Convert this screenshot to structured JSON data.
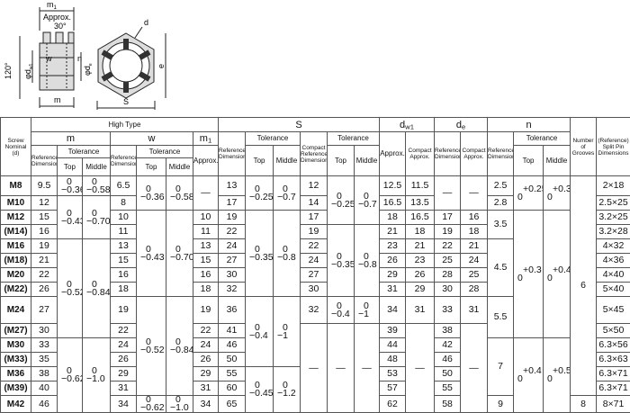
{
  "diagram": {
    "labels": {
      "m1": {
        "main": "m",
        "sub": "1"
      },
      "approx": "Approx.",
      "angle30": "30°",
      "d": "d",
      "angle120": "120°",
      "dw1": {
        "main": "φd",
        "sub": "w1"
      },
      "w": "w",
      "n": "n",
      "de": {
        "main": "φd",
        "sub": "e"
      },
      "e": "e",
      "m": "m",
      "s": "S"
    }
  },
  "table": {
    "header": {
      "nominal": "Screw Nominal (d)",
      "high_type": "High Type",
      "m": {
        "label": "m",
        "ref": "Reference Dimensions",
        "tolerance": "Tolerance",
        "top": "Top",
        "middle": "Middle"
      },
      "w": {
        "label": "w",
        "ref": "Reference Dimensions",
        "tolerance": "Tolerance",
        "top": "Top",
        "middle": "Middle"
      },
      "m1": {
        "label": {
          "main": "m",
          "sub": "1"
        },
        "approx": "Approx."
      },
      "s": {
        "label": "S",
        "ref": "Reference Dimensions",
        "tolerance": "Tolerance",
        "top": "Top",
        "middle": "Middle",
        "compact_ref": "Compact Reference Dimensions",
        "compact_tolerance": "Tolerance",
        "compact_top": "Top",
        "compact_middle": "Middle"
      },
      "dw1": {
        "label": {
          "main": "d",
          "sub": "w1"
        },
        "approx": "Approx.",
        "compact": "Compact Approx."
      },
      "de": {
        "label": {
          "main": "d",
          "sub": "e"
        },
        "ref": "Reference Dimensions",
        "compact": "Compact Approx."
      },
      "n": {
        "label": "n",
        "ref": "Reference Dimensions",
        "tolerance": "Tolerance",
        "top": "Top",
        "middle": "Middle"
      },
      "grooves": "Number of Grooves",
      "split_pin": "(Reference) Split Pin Dimensions"
    },
    "body": {
      "nominal": [
        "M8",
        "M10",
        "M12",
        "(M14)",
        "M16",
        "(M18)",
        "M20",
        "(M22)",
        "M24",
        "(M27)",
        "M30",
        "(M33)",
        "M36",
        "(M39)",
        "M42"
      ],
      "m_ref": [
        9.5,
        12,
        15,
        16,
        19,
        21,
        22,
        26,
        27,
        30,
        33,
        35,
        38,
        40,
        46
      ],
      "m_top": [
        [
          "0",
          "−0.36"
        ],
        [
          "0",
          "−0.43"
        ],
        [
          "0",
          "−0.52"
        ],
        [
          "0",
          "−0.62"
        ]
      ],
      "m_middle": [
        [
          "0",
          "−0.58"
        ],
        [
          "0",
          "−0.70"
        ],
        [
          "0",
          "−0.84"
        ],
        [
          "0",
          "−1.0"
        ]
      ],
      "w_ref": [
        6.5,
        8,
        10,
        11,
        13,
        15,
        16,
        18,
        19,
        22,
        24,
        26,
        29,
        31,
        34
      ],
      "w_top": [
        [
          "0",
          "−0.36"
        ],
        [
          "0",
          "−0.43"
        ],
        [
          "0",
          "−0.52"
        ],
        [
          "0",
          "−0.62"
        ]
      ],
      "w_middle": [
        [
          "0",
          "−0.58"
        ],
        [
          "0",
          "−0.70"
        ],
        [
          "0",
          "−0.84"
        ],
        [
          "0",
          "−1.0"
        ]
      ],
      "m1_approx": [
        "—",
        10,
        11,
        13,
        15,
        16,
        18,
        19,
        22,
        24,
        26,
        29,
        31,
        34
      ],
      "s_ref": [
        13,
        17,
        19,
        22,
        24,
        27,
        30,
        32,
        36,
        41,
        46,
        50,
        55,
        60,
        65
      ],
      "s_top": [
        [
          "0",
          "−0.25"
        ],
        [
          "0",
          "−0.35"
        ],
        [
          "0",
          "−0.4"
        ],
        [
          "0",
          "−0.45"
        ]
      ],
      "s_middle": [
        [
          "0",
          "−0.7"
        ],
        [
          "0",
          "−0.8"
        ],
        [
          "0",
          "−1"
        ],
        [
          "0",
          "−1.2"
        ]
      ],
      "s_compact_ref": [
        12,
        14,
        17,
        19,
        22,
        24,
        27,
        30,
        32,
        "—"
      ],
      "s_compact_top": [
        [
          "0",
          "−0.25"
        ],
        [
          "0",
          "−0.35"
        ],
        [
          "0",
          "−0.4"
        ],
        [
          "—"
        ]
      ],
      "s_compact_middle": [
        [
          "0",
          "−0.7"
        ],
        [
          "0",
          "−0.8"
        ],
        [
          "0",
          "−1"
        ],
        [
          "—"
        ]
      ],
      "dw1_approx": [
        12.5,
        16.5,
        18,
        21,
        23,
        26,
        29,
        31,
        34,
        39,
        44,
        48,
        53,
        57,
        62
      ],
      "dw1_compact": [
        11.5,
        13.5,
        16.5,
        18,
        21,
        23,
        26,
        29,
        31,
        "—"
      ],
      "de_ref": [
        "—",
        17,
        19,
        22,
        25,
        28,
        30,
        33,
        38,
        42,
        46,
        50,
        55,
        58
      ],
      "de_compact": [
        "—",
        16,
        18,
        21,
        24,
        25,
        28,
        31,
        "—"
      ],
      "n_ref": [
        2.5,
        2.8,
        3.5,
        4.5,
        5.5,
        7,
        9
      ],
      "n_top": [
        [
          "+0.25",
          "0"
        ],
        [
          "+0.3",
          "0"
        ],
        [
          "+0.4",
          "0"
        ]
      ],
      "n_middle": [
        [
          "+0.3",
          "0"
        ],
        [
          "+0.4",
          "0"
        ],
        [
          "+0.5",
          "0"
        ]
      ],
      "grooves": [
        6,
        8
      ],
      "split_pin": [
        "2×18",
        "2.5×25",
        "3.2×25",
        "3.2×28",
        "4×32",
        "4×36",
        "4×40",
        "5×40",
        "5×45",
        "5×50",
        "6.3×56",
        "6.3×63",
        "6.3×71",
        "6.3×71",
        "8×71"
      ]
    }
  }
}
